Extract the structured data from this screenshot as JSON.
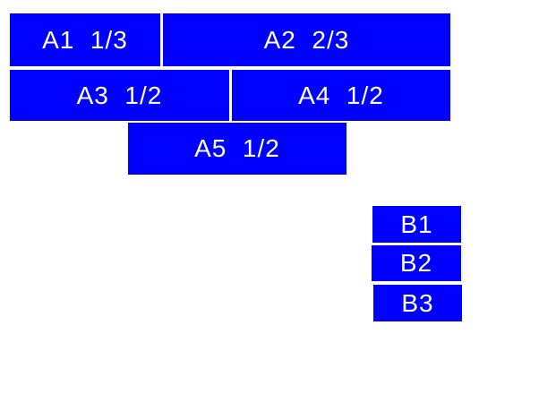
{
  "colors": {
    "window_bg": "#ffffff",
    "box_bg": "#0000ff",
    "box_text": "#ffffff"
  },
  "group_a": {
    "boxes": [
      {
        "id": "A1",
        "label": "A1  1/3",
        "fraction": "1/3"
      },
      {
        "id": "A2",
        "label": "A2  2/3",
        "fraction": "2/3"
      },
      {
        "id": "A3",
        "label": "A3  1/2",
        "fraction": "1/2"
      },
      {
        "id": "A4",
        "label": "A4  1/2",
        "fraction": "1/2"
      },
      {
        "id": "A5",
        "label": "A5  1/2",
        "fraction": "1/2"
      }
    ]
  },
  "group_b": {
    "boxes": [
      {
        "id": "B1",
        "label": "B1"
      },
      {
        "id": "B2",
        "label": "B2"
      },
      {
        "id": "B3",
        "label": "B3"
      }
    ]
  }
}
